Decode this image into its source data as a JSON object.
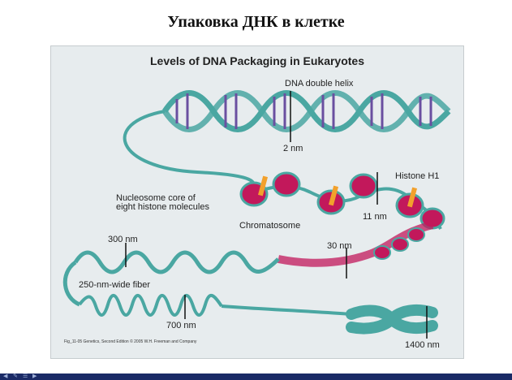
{
  "slide": {
    "title": "Упаковка ДНК в клетке"
  },
  "figure": {
    "title": "Levels of DNA Packaging in Eukaryotes",
    "labels": {
      "double_helix": "DNA double helix",
      "nm2": "2 nm",
      "histone_h1": "Histone H1",
      "nucleosome_line1": "Nucleosome core of",
      "nucleosome_line2": "eight histone molecules",
      "nm11": "11 nm",
      "chromatosome": "Chromatosome",
      "nm300": "300 nm",
      "nm30": "30 nm",
      "fiber250": "250-nm-wide fiber",
      "nm700": "700 nm",
      "nm1400": "1400 nm"
    },
    "credit": "Fig_11-05  Genetics, Second Edition © 2005 W.H. Freeman and Company",
    "colors": {
      "backbone": "#4aa7a2",
      "base_pairs": "#6a4fa0",
      "histone": "#c2185b",
      "h1": "#f2a12c"
    }
  },
  "nav": {
    "icons": [
      "arrow-left-icon",
      "pen-icon",
      "menu-icon",
      "arrow-right-icon"
    ]
  }
}
